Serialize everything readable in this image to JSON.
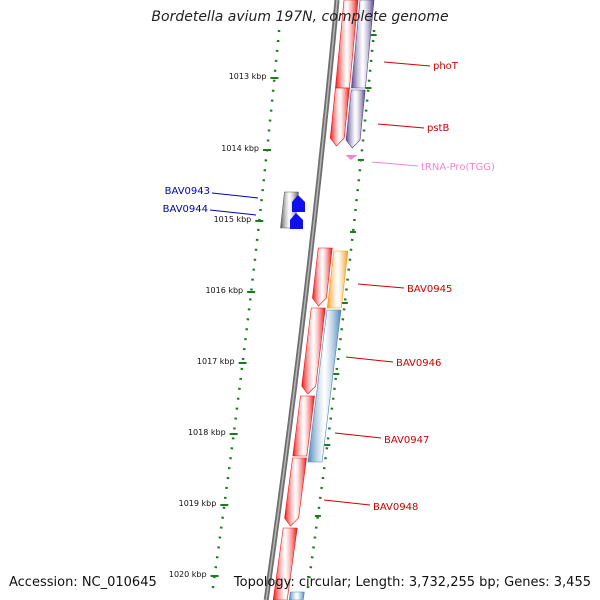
{
  "title": "Bordetella avium 197N, complete genome",
  "footer": {
    "accession": "Accession: NC_010645",
    "summary": "Topology: circular; Length: 3,732,255 bp; Genes: 3,455"
  },
  "colors": {
    "backbone": "#8a8a8a",
    "tick": "#1e7a1e",
    "gene_red": "#ee1111",
    "gene_purple": "#55448a",
    "gene_orange": "#f39a17",
    "gene_steel": "#4a86b8",
    "gene_gray": "#5a5a5a",
    "gene_blue": "#1010ee",
    "trna_pink": "#f08ac8",
    "label_red": "#cc0000",
    "label_blue": "#0000bb",
    "label_pink": "#ee88c8"
  },
  "ticks": [
    {
      "label": "1013 kbp"
    },
    {
      "label": "1014 kbp"
    },
    {
      "label": "1015 kbp"
    },
    {
      "label": "1016 kbp"
    },
    {
      "label": "1017 kbp"
    },
    {
      "label": "1018 kbp"
    },
    {
      "label": "1019 kbp"
    },
    {
      "label": "1020 kbp"
    }
  ],
  "genes": [
    {
      "name": "phoT",
      "color": "label_red"
    },
    {
      "name": "pstB",
      "color": "label_red"
    },
    {
      "name": "tRNA-Pro(TGG)",
      "color": "label_pink"
    },
    {
      "name": "BAV0943",
      "color": "label_blue"
    },
    {
      "name": "BAV0944",
      "color": "label_blue"
    },
    {
      "name": "BAV0945",
      "color": "label_red"
    },
    {
      "name": "BAV0946",
      "color": "label_red"
    },
    {
      "name": "BAV0947",
      "color": "label_red"
    },
    {
      "name": "BAV0948",
      "color": "label_red"
    }
  ]
}
